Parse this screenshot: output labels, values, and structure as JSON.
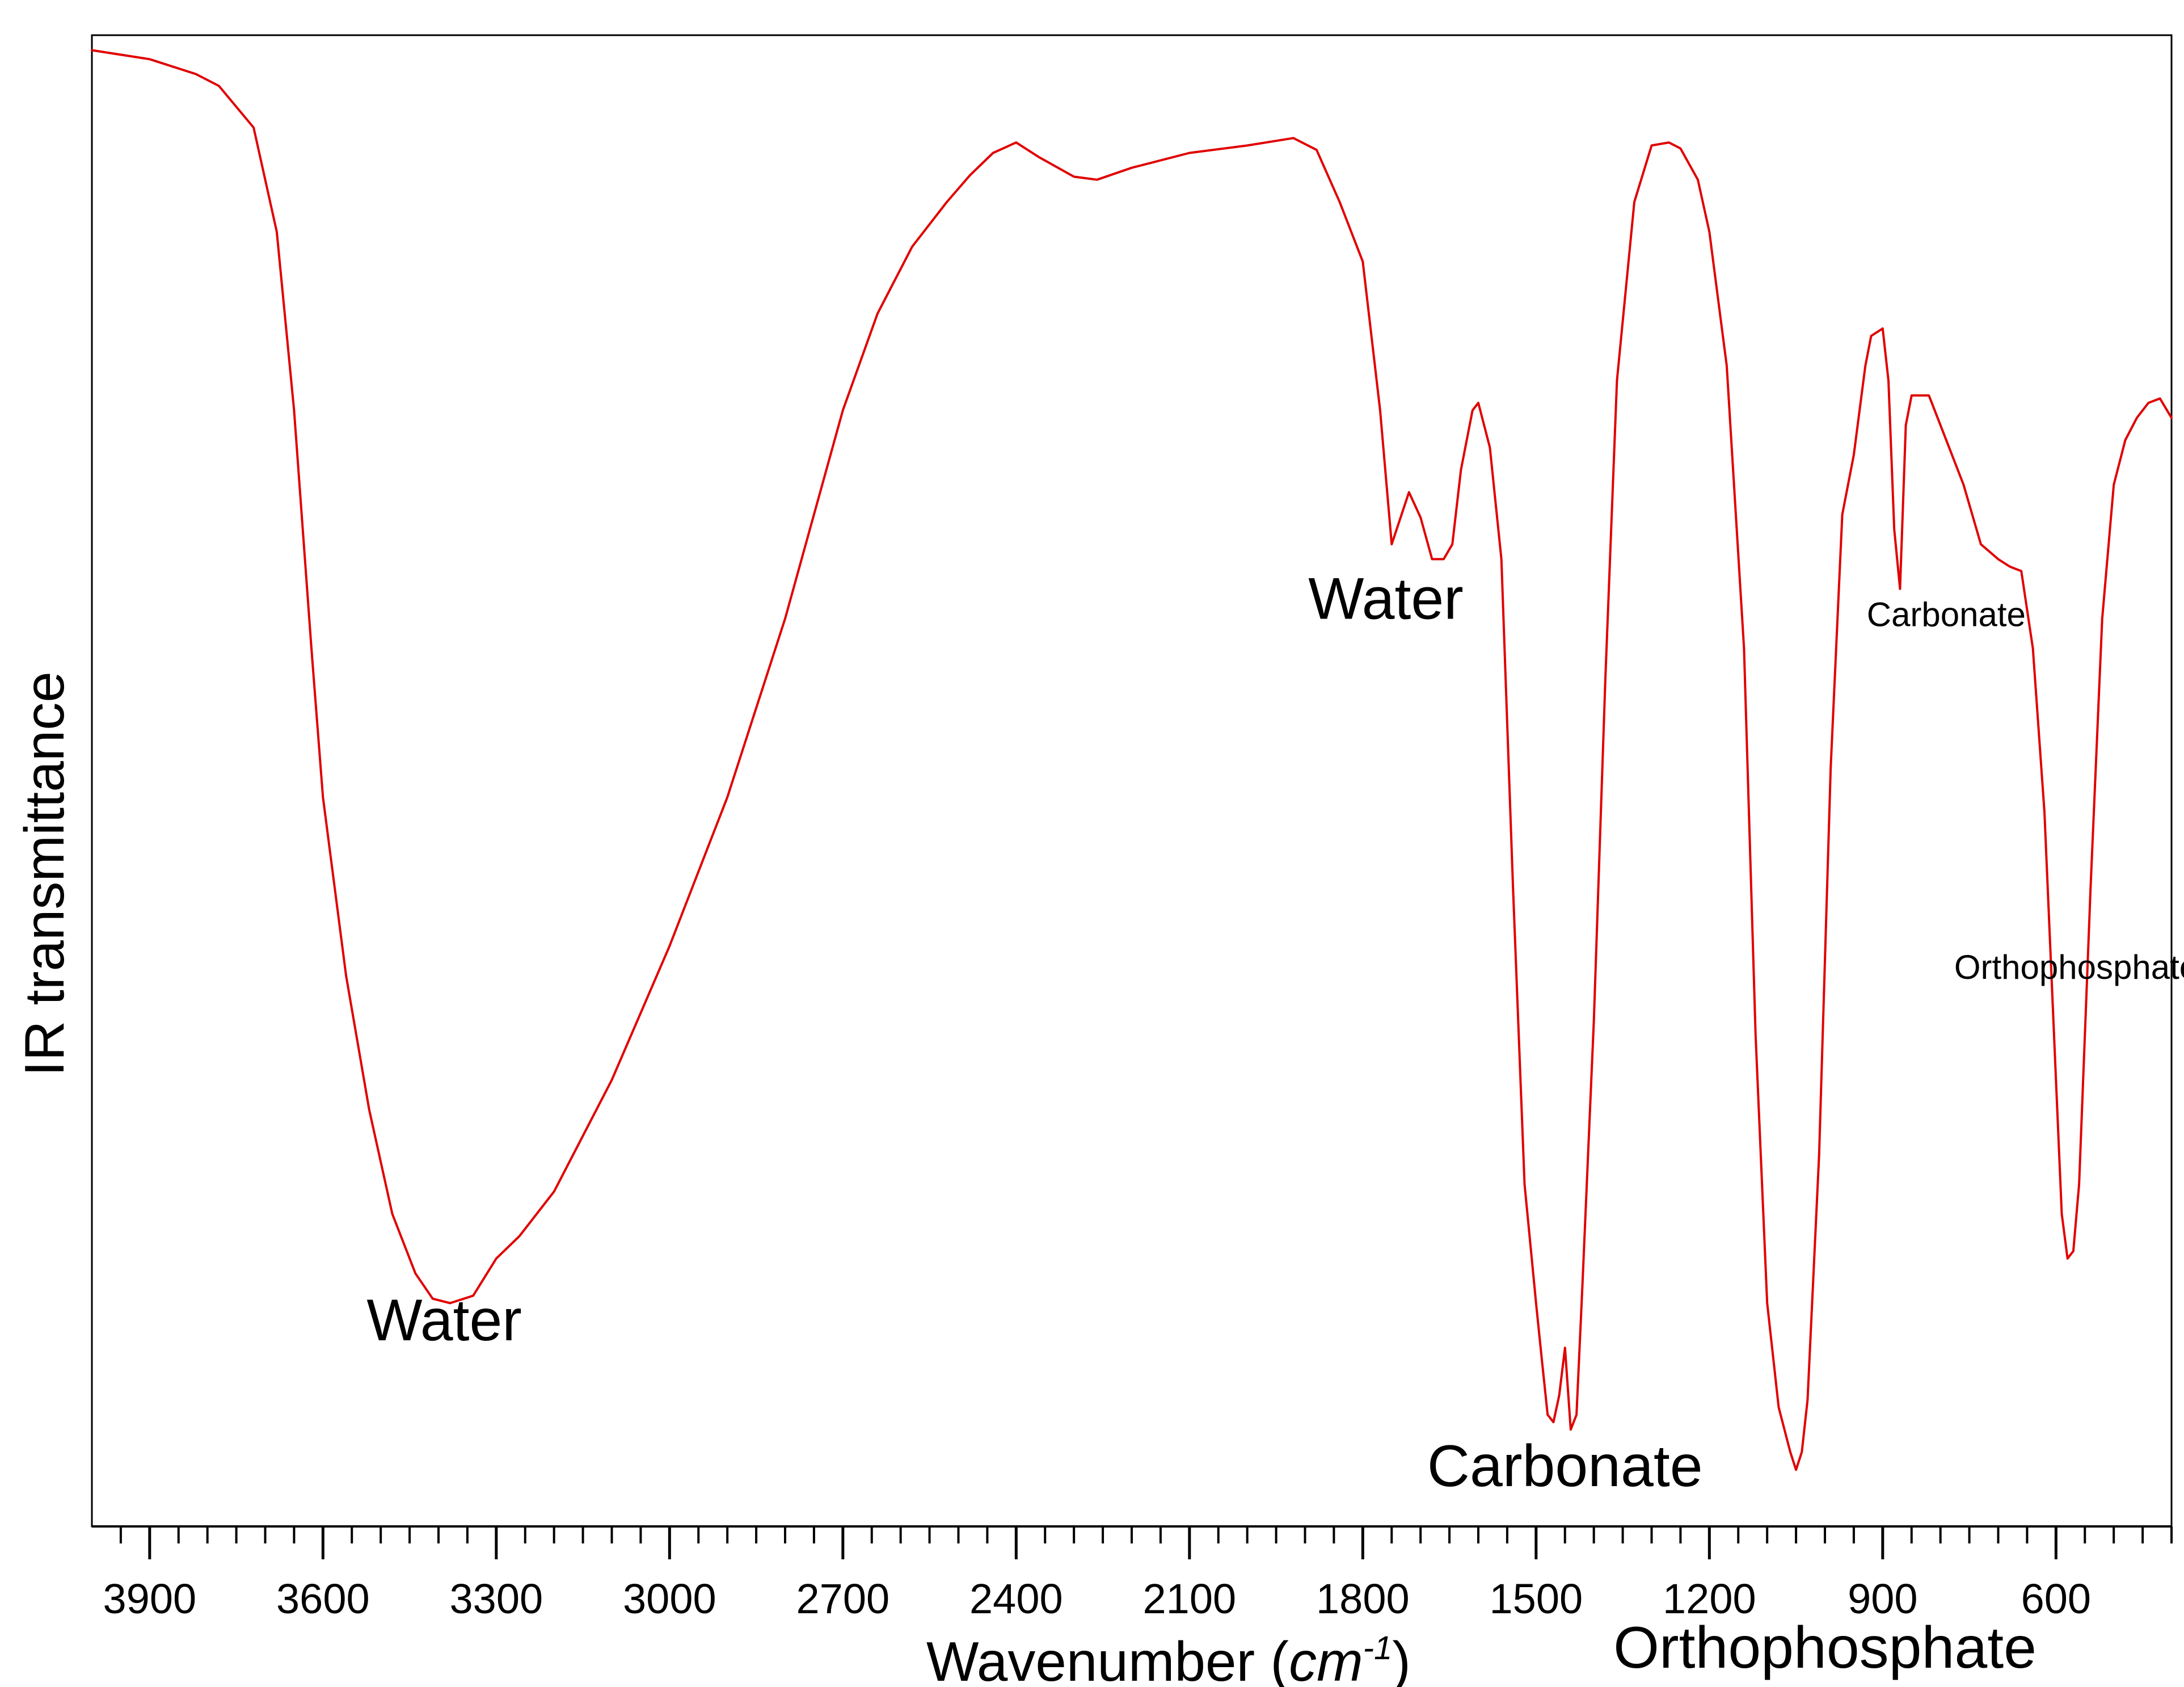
{
  "chart_data": {
    "type": "line",
    "title": "",
    "xlabel": "Wavenumber",
    "xlabel_unit_base": "cm",
    "xlabel_unit_exp": "-1",
    "ylabel": "IR transmittance",
    "xlim": [
      4000,
      400
    ],
    "x_reversed": true,
    "ylim": [
      0,
      100
    ],
    "y_ticks_shown": false,
    "grid": false,
    "x_major_ticks": [
      3900,
      3600,
      3300,
      3000,
      2700,
      2400,
      2100,
      1800,
      1500,
      1200,
      900,
      600
    ],
    "x_tick_labels": [
      "3900",
      "3600",
      "3300",
      "3000",
      "2700",
      "2400",
      "2100",
      "1800",
      "1500",
      "1200",
      "900",
      "600"
    ],
    "line_color": "#e00000",
    "series": [
      {
        "x": [
          4000,
          3900,
          3820,
          3780,
          3720,
          3680,
          3650,
          3620,
          3600,
          3560,
          3520,
          3480,
          3440,
          3410,
          3380,
          3340,
          3300,
          3260,
          3200,
          3100,
          3000,
          2900,
          2800,
          2700,
          2640,
          2580,
          2520,
          2480,
          2440,
          2400,
          2360,
          2300,
          2260,
          2200,
          2100,
          2000,
          1920,
          1880,
          1840,
          1800,
          1770,
          1750,
          1720,
          1700,
          1680,
          1660,
          1645,
          1630,
          1610,
          1600,
          1580,
          1560,
          1540,
          1520,
          1500,
          1490,
          1480,
          1470,
          1460,
          1450,
          1440,
          1430,
          1420,
          1400,
          1380,
          1360,
          1330,
          1300,
          1270,
          1250,
          1220,
          1200,
          1170,
          1140,
          1120,
          1100,
          1080,
          1060,
          1050,
          1040,
          1030,
          1010,
          990,
          970,
          950,
          930,
          920,
          900,
          890,
          880,
          870,
          860,
          850,
          820,
          790,
          760,
          730,
          700,
          680,
          660,
          640,
          620,
          600,
          590,
          580,
          570,
          560,
          540,
          520,
          500,
          480,
          460,
          440,
          420,
          400
        ],
        "y": [
          96.2,
          95.6,
          94.6,
          93.8,
          91.0,
          84.0,
          72.0,
          56.0,
          46.0,
          34.0,
          25.0,
          18.0,
          14.0,
          12.3,
          12.0,
          12.5,
          15.0,
          16.5,
          19.5,
          27.0,
          36.0,
          46.0,
          58.0,
          72.0,
          78.5,
          83.0,
          86.0,
          87.8,
          89.3,
          90.0,
          89.0,
          87.7,
          87.5,
          88.3,
          89.3,
          89.8,
          90.3,
          89.5,
          86.0,
          82.0,
          72.0,
          63.0,
          66.5,
          64.8,
          62.0,
          62.0,
          63.0,
          68.0,
          72.0,
          72.5,
          69.5,
          62.0,
          40.0,
          20.0,
          12.0,
          8.2,
          4.5,
          4.0,
          5.8,
          9.0,
          3.5,
          4.5,
          13.0,
          31.0,
          54.0,
          74.0,
          86.0,
          89.8,
          90.0,
          89.6,
          87.5,
          84.0,
          75.0,
          56.0,
          30.0,
          12.0,
          5.0,
          2.0,
          0.8,
          2.0,
          5.5,
          22.0,
          48.0,
          65.0,
          69.0,
          75.0,
          77.0,
          77.5,
          74.0,
          64.0,
          60.0,
          71.0,
          73.0,
          73.0,
          70.0,
          67.0,
          63.0,
          62.0,
          61.5,
          61.2,
          56.0,
          45.0,
          27.0,
          18.0,
          15.0,
          15.5,
          20.0,
          40.0,
          58.0,
          67.0,
          70.0,
          71.5,
          72.5,
          72.8,
          71.5
        ]
      }
    ],
    "annotations": [
      {
        "text": "Water",
        "x": 3390,
        "y": 9.5,
        "size": "large"
      },
      {
        "text": "Water",
        "x": 1760,
        "y": 58.0,
        "size": "large"
      },
      {
        "text": "Carbonate",
        "x": 1450,
        "y": -0.3,
        "size": "large"
      },
      {
        "text": "Orthophosphate",
        "x": 1000,
        "y": -12.5,
        "size": "large"
      },
      {
        "text": "Carbonate",
        "x": 790,
        "y": 57.5,
        "size": "small"
      },
      {
        "text": "Orthophosphate",
        "x": 565,
        "y": 33.8,
        "size": "small"
      }
    ]
  }
}
